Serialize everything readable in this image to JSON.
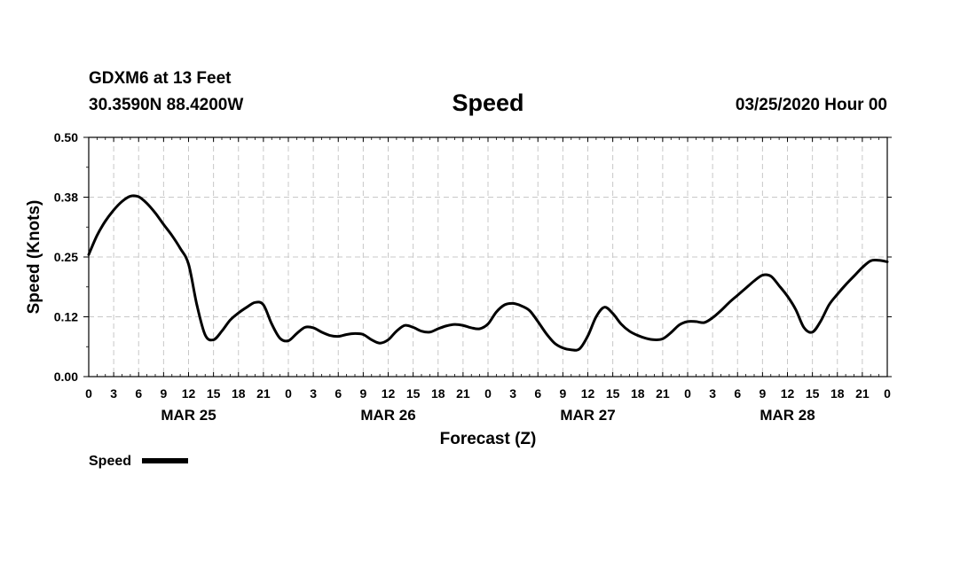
{
  "header": {
    "station": "GDXM6 at 13 Feet",
    "location": "30.3590N 88.4200W",
    "title": "Speed",
    "datetime": "03/25/2020 Hour 00"
  },
  "chart_data": {
    "type": "line",
    "xlabel": "Forecast (Z)",
    "ylabel": "Speed (Knots)",
    "ylim": [
      0,
      0.5
    ],
    "yticks": [
      "0.00",
      "0.12",
      "0.25",
      "0.38",
      "0.50"
    ],
    "x_hours_range": [
      0,
      96
    ],
    "x_tick_labels": [
      "0",
      "3",
      "6",
      "9",
      "12",
      "15",
      "18",
      "21",
      "0",
      "3",
      "6",
      "9",
      "12",
      "15",
      "18",
      "21",
      "0",
      "3",
      "6",
      "9",
      "12",
      "15",
      "18",
      "21",
      "0",
      "3",
      "6",
      "9",
      "12",
      "15",
      "18",
      "21",
      "0"
    ],
    "day_labels": [
      {
        "label": "MAR 25",
        "hour": 12
      },
      {
        "label": "MAR 26",
        "hour": 36
      },
      {
        "label": "MAR 27",
        "hour": 60
      },
      {
        "label": "MAR 28",
        "hour": 84
      }
    ],
    "grid": true,
    "legend": "bottom-left",
    "series": [
      {
        "name": "Speed",
        "color": "#000000",
        "x": [
          0,
          1,
          2,
          3,
          4,
          5,
          6,
          7,
          8,
          9,
          10,
          11,
          12,
          13,
          14,
          15,
          16,
          17,
          18,
          19,
          20,
          21,
          22,
          23,
          24,
          25,
          26,
          27,
          28,
          29,
          30,
          31,
          32,
          33,
          34,
          35,
          36,
          37,
          38,
          39,
          40,
          41,
          42,
          43,
          44,
          45,
          46,
          47,
          48,
          49,
          50,
          51,
          52,
          53,
          54,
          55,
          56,
          57,
          58,
          59,
          60,
          61,
          62,
          63,
          64,
          65,
          66,
          67,
          68,
          69,
          70,
          71,
          72,
          73,
          74,
          75,
          76,
          77,
          78,
          79,
          80,
          81,
          82,
          83,
          84,
          85,
          86,
          87,
          88,
          89,
          90,
          91,
          92,
          93,
          94,
          95,
          96
        ],
        "values": [
          0.255,
          0.295,
          0.325,
          0.348,
          0.366,
          0.377,
          0.376,
          0.362,
          0.342,
          0.318,
          0.295,
          0.268,
          0.235,
          0.15,
          0.087,
          0.077,
          0.095,
          0.118,
          0.133,
          0.145,
          0.155,
          0.15,
          0.11,
          0.08,
          0.075,
          0.09,
          0.103,
          0.102,
          0.093,
          0.086,
          0.084,
          0.088,
          0.09,
          0.088,
          0.077,
          0.07,
          0.077,
          0.095,
          0.107,
          0.103,
          0.095,
          0.093,
          0.1,
          0.106,
          0.109,
          0.107,
          0.102,
          0.1,
          0.11,
          0.135,
          0.15,
          0.153,
          0.148,
          0.138,
          0.115,
          0.09,
          0.07,
          0.06,
          0.056,
          0.058,
          0.085,
          0.125,
          0.145,
          0.132,
          0.11,
          0.095,
          0.086,
          0.08,
          0.077,
          0.079,
          0.092,
          0.108,
          0.115,
          0.115,
          0.113,
          0.123,
          0.138,
          0.155,
          0.17,
          0.185,
          0.2,
          0.212,
          0.21,
          0.19,
          0.168,
          0.14,
          0.102,
          0.093,
          0.116,
          0.15,
          0.172,
          0.192,
          0.21,
          0.228,
          0.242,
          0.243,
          0.24
        ]
      }
    ]
  }
}
